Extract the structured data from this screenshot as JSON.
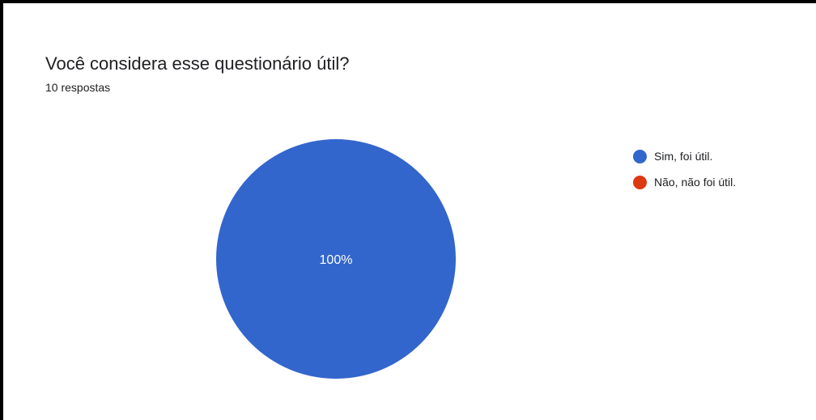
{
  "question": {
    "title": "Você considera esse questionário útil?",
    "responses": "10 respostas"
  },
  "chart_data": {
    "type": "pie",
    "categories": [
      "Sim, foi útil.",
      "Não, não foi útil."
    ],
    "values": [
      10,
      0
    ],
    "colors": [
      "#3366cc",
      "#dc3912"
    ],
    "data_labels": [
      "100%",
      ""
    ],
    "legend_position": "right",
    "title": "",
    "subtitle": ""
  }
}
